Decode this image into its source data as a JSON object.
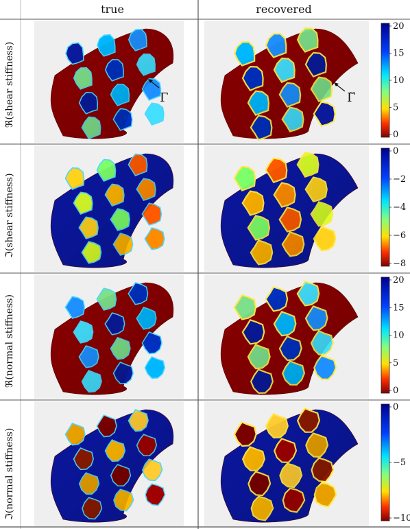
{
  "columns": [
    "true",
    "recovered"
  ],
  "rows": [
    {
      "label": "ℜ(shear stiffness)",
      "ticks": [
        "20",
        "15",
        "10",
        "5",
        "0"
      ],
      "range": [
        0,
        20
      ],
      "cmap": "pos"
    },
    {
      "label": "ℑ(shear stiffness)",
      "ticks": [
        "0",
        "−2",
        "−4",
        "−6",
        "−8"
      ],
      "range": [
        -8,
        0
      ],
      "cmap": "neg"
    },
    {
      "label": "ℜ(normal stiffness)",
      "ticks": [
        "20",
        "15",
        "10",
        "5",
        "0"
      ],
      "range": [
        0,
        20
      ],
      "cmap": "pos"
    },
    {
      "label": "ℑ(normal stiffness)",
      "ticks": [
        "0",
        "−5",
        "−10"
      ],
      "range": [
        -10,
        0
      ],
      "cmap": "neg"
    }
  ],
  "annotations": {
    "true_label": "Γ",
    "recovered_label": "Γ̆"
  },
  "colors": {
    "dark_red": "#8b0000",
    "dark_blue": "#0a0f8c",
    "panel_bg": "#efefef"
  }
}
